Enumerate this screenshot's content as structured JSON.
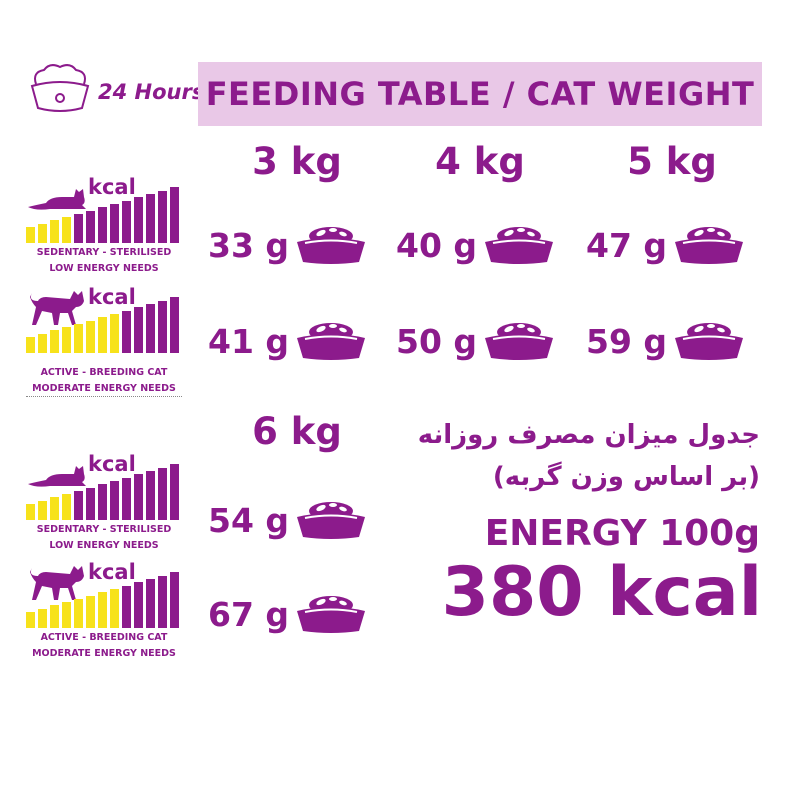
{
  "header": {
    "hours": "24 Hours",
    "title": "FEEDING TABLE / CAT WEIGHT"
  },
  "weights": [
    "3 kg",
    "4 kg",
    "5 kg",
    "6 kg"
  ],
  "sedentary": [
    "33 g",
    "40 g",
    "47 g",
    "54 g"
  ],
  "active": [
    "41 g",
    "50 g",
    "59 g",
    "67 g"
  ],
  "panels": {
    "kcal": "kcal",
    "sedentary": {
      "line1": "SEDENTARY - STERILISED",
      "line2": "LOW ENERGY NEEDS",
      "yellow_bars": 4,
      "total_bars": 13
    },
    "active": {
      "line1": "ACTIVE - BREEDING CAT",
      "line2": "MODERATE ENERGY NEEDS",
      "yellow_bars": 8,
      "total_bars": 13
    }
  },
  "persian": {
    "line1": "جدول میزان مصرف روزانه",
    "line2": "(بر اساس وزن گربه)"
  },
  "energy": {
    "label": "ENERGY 100g",
    "value": "380 kcal"
  },
  "colors": {
    "purple": "#8c1b8c",
    "yellow": "#f7e21b",
    "header_bg": "#e9c8e7"
  }
}
